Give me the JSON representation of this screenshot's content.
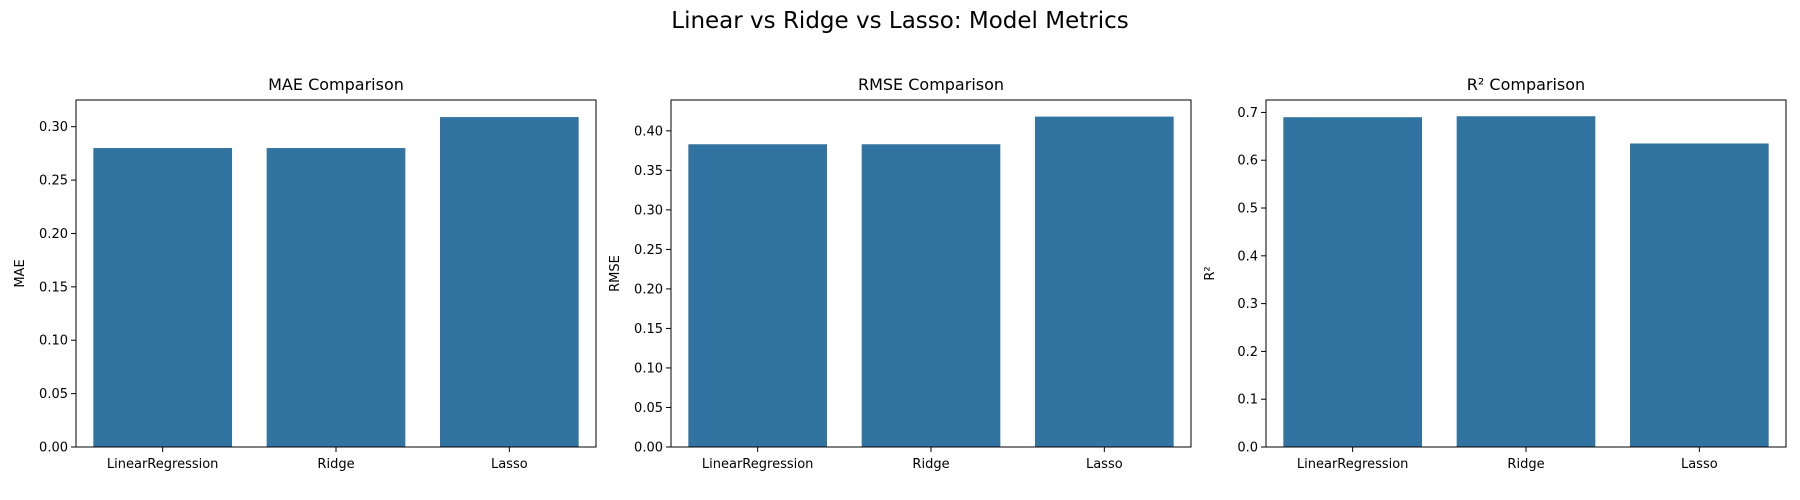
{
  "figure": {
    "suptitle": "Linear vs Ridge vs Lasso: Model Metrics",
    "bar_color": "#3274a1"
  },
  "chart_data": [
    {
      "type": "bar",
      "title": "MAE Comparison",
      "xlabel": "",
      "ylabel": "MAE",
      "categories": [
        "LinearRegression",
        "Ridge",
        "Lasso"
      ],
      "values": [
        0.28,
        0.28,
        0.309
      ],
      "ylim": [
        0,
        0.325
      ],
      "yticks": [
        0.0,
        0.05,
        0.1,
        0.15,
        0.2,
        0.25,
        0.3
      ],
      "ytick_labels": [
        "0.00",
        "0.05",
        "0.10",
        "0.15",
        "0.20",
        "0.25",
        "0.30"
      ],
      "grid": false,
      "legend": "none"
    },
    {
      "type": "bar",
      "title": "RMSE Comparison",
      "xlabel": "",
      "ylabel": "RMSE",
      "categories": [
        "LinearRegression",
        "Ridge",
        "Lasso"
      ],
      "values": [
        0.383,
        0.383,
        0.418
      ],
      "ylim": [
        0,
        0.439
      ],
      "yticks": [
        0.0,
        0.05,
        0.1,
        0.15,
        0.2,
        0.25,
        0.3,
        0.35,
        0.4
      ],
      "ytick_labels": [
        "0.00",
        "0.05",
        "0.10",
        "0.15",
        "0.20",
        "0.25",
        "0.30",
        "0.35",
        "0.40"
      ],
      "grid": false,
      "legend": "none"
    },
    {
      "type": "bar",
      "title": "R² Comparison",
      "xlabel": "",
      "ylabel": "R²",
      "categories": [
        "LinearRegression",
        "Ridge",
        "Lasso"
      ],
      "values": [
        0.69,
        0.692,
        0.635
      ],
      "ylim": [
        0,
        0.726
      ],
      "yticks": [
        0.0,
        0.1,
        0.2,
        0.3,
        0.4,
        0.5,
        0.6,
        0.7
      ],
      "ytick_labels": [
        "0.0",
        "0.1",
        "0.2",
        "0.3",
        "0.4",
        "0.5",
        "0.6",
        "0.7"
      ],
      "grid": false,
      "legend": "none"
    }
  ]
}
